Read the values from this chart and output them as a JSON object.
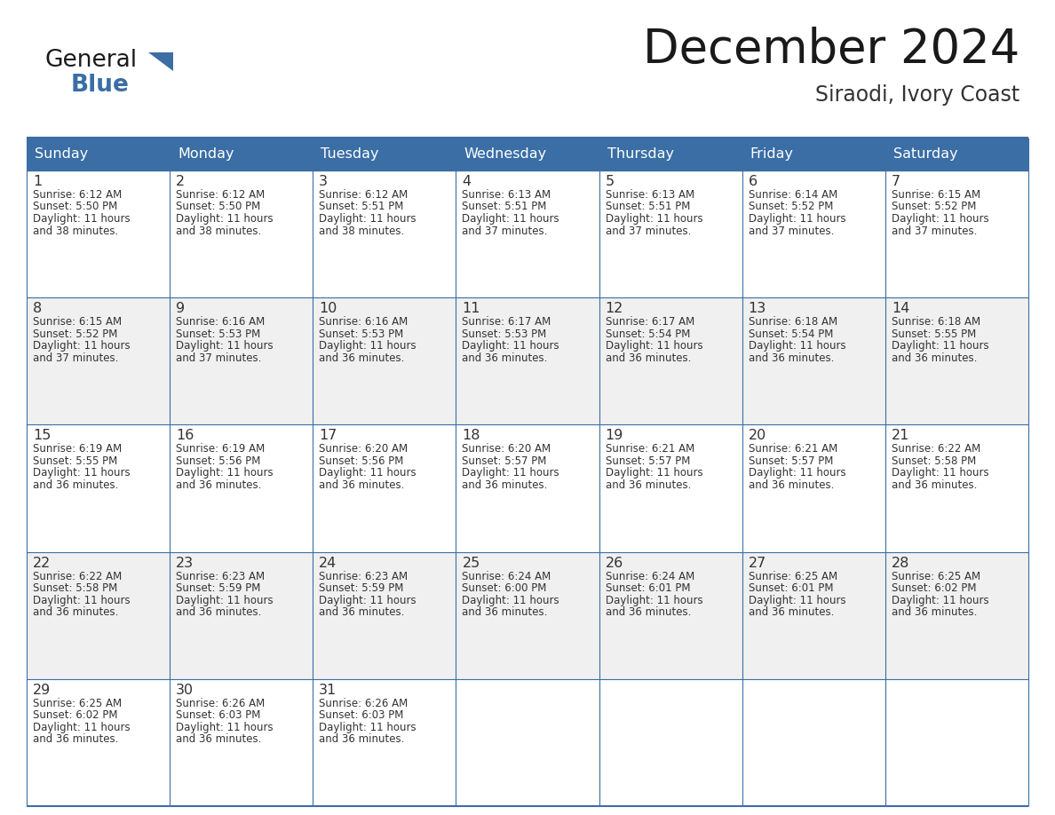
{
  "title": "December 2024",
  "subtitle": "Siraodi, Ivory Coast",
  "header_bg_color": "#3a6ea5",
  "header_text_color": "#FFFFFF",
  "grid_color": "#3a6ea5",
  "title_color": "#1a1a1a",
  "subtitle_color": "#333333",
  "text_color": "#333333",
  "days_of_week": [
    "Sunday",
    "Monday",
    "Tuesday",
    "Wednesday",
    "Thursday",
    "Friday",
    "Saturday"
  ],
  "logo_general_color": "#1a1a1a",
  "logo_blue_color": "#3a6ea5",
  "weeks": [
    [
      {
        "day": 1,
        "sunrise": "6:12 AM",
        "sunset": "5:50 PM",
        "daylight_h": "11 hours",
        "daylight_m": "38 minutes."
      },
      {
        "day": 2,
        "sunrise": "6:12 AM",
        "sunset": "5:50 PM",
        "daylight_h": "11 hours",
        "daylight_m": "38 minutes."
      },
      {
        "day": 3,
        "sunrise": "6:12 AM",
        "sunset": "5:51 PM",
        "daylight_h": "11 hours",
        "daylight_m": "38 minutes."
      },
      {
        "day": 4,
        "sunrise": "6:13 AM",
        "sunset": "5:51 PM",
        "daylight_h": "11 hours",
        "daylight_m": "37 minutes."
      },
      {
        "day": 5,
        "sunrise": "6:13 AM",
        "sunset": "5:51 PM",
        "daylight_h": "11 hours",
        "daylight_m": "37 minutes."
      },
      {
        "day": 6,
        "sunrise": "6:14 AM",
        "sunset": "5:52 PM",
        "daylight_h": "11 hours",
        "daylight_m": "37 minutes."
      },
      {
        "day": 7,
        "sunrise": "6:15 AM",
        "sunset": "5:52 PM",
        "daylight_h": "11 hours",
        "daylight_m": "37 minutes."
      }
    ],
    [
      {
        "day": 8,
        "sunrise": "6:15 AM",
        "sunset": "5:52 PM",
        "daylight_h": "11 hours",
        "daylight_m": "37 minutes."
      },
      {
        "day": 9,
        "sunrise": "6:16 AM",
        "sunset": "5:53 PM",
        "daylight_h": "11 hours",
        "daylight_m": "37 minutes."
      },
      {
        "day": 10,
        "sunrise": "6:16 AM",
        "sunset": "5:53 PM",
        "daylight_h": "11 hours",
        "daylight_m": "36 minutes."
      },
      {
        "day": 11,
        "sunrise": "6:17 AM",
        "sunset": "5:53 PM",
        "daylight_h": "11 hours",
        "daylight_m": "36 minutes."
      },
      {
        "day": 12,
        "sunrise": "6:17 AM",
        "sunset": "5:54 PM",
        "daylight_h": "11 hours",
        "daylight_m": "36 minutes."
      },
      {
        "day": 13,
        "sunrise": "6:18 AM",
        "sunset": "5:54 PM",
        "daylight_h": "11 hours",
        "daylight_m": "36 minutes."
      },
      {
        "day": 14,
        "sunrise": "6:18 AM",
        "sunset": "5:55 PM",
        "daylight_h": "11 hours",
        "daylight_m": "36 minutes."
      }
    ],
    [
      {
        "day": 15,
        "sunrise": "6:19 AM",
        "sunset": "5:55 PM",
        "daylight_h": "11 hours",
        "daylight_m": "36 minutes."
      },
      {
        "day": 16,
        "sunrise": "6:19 AM",
        "sunset": "5:56 PM",
        "daylight_h": "11 hours",
        "daylight_m": "36 minutes."
      },
      {
        "day": 17,
        "sunrise": "6:20 AM",
        "sunset": "5:56 PM",
        "daylight_h": "11 hours",
        "daylight_m": "36 minutes."
      },
      {
        "day": 18,
        "sunrise": "6:20 AM",
        "sunset": "5:57 PM",
        "daylight_h": "11 hours",
        "daylight_m": "36 minutes."
      },
      {
        "day": 19,
        "sunrise": "6:21 AM",
        "sunset": "5:57 PM",
        "daylight_h": "11 hours",
        "daylight_m": "36 minutes."
      },
      {
        "day": 20,
        "sunrise": "6:21 AM",
        "sunset": "5:57 PM",
        "daylight_h": "11 hours",
        "daylight_m": "36 minutes."
      },
      {
        "day": 21,
        "sunrise": "6:22 AM",
        "sunset": "5:58 PM",
        "daylight_h": "11 hours",
        "daylight_m": "36 minutes."
      }
    ],
    [
      {
        "day": 22,
        "sunrise": "6:22 AM",
        "sunset": "5:58 PM",
        "daylight_h": "11 hours",
        "daylight_m": "36 minutes."
      },
      {
        "day": 23,
        "sunrise": "6:23 AM",
        "sunset": "5:59 PM",
        "daylight_h": "11 hours",
        "daylight_m": "36 minutes."
      },
      {
        "day": 24,
        "sunrise": "6:23 AM",
        "sunset": "5:59 PM",
        "daylight_h": "11 hours",
        "daylight_m": "36 minutes."
      },
      {
        "day": 25,
        "sunrise": "6:24 AM",
        "sunset": "6:00 PM",
        "daylight_h": "11 hours",
        "daylight_m": "36 minutes."
      },
      {
        "day": 26,
        "sunrise": "6:24 AM",
        "sunset": "6:01 PM",
        "daylight_h": "11 hours",
        "daylight_m": "36 minutes."
      },
      {
        "day": 27,
        "sunrise": "6:25 AM",
        "sunset": "6:01 PM",
        "daylight_h": "11 hours",
        "daylight_m": "36 minutes."
      },
      {
        "day": 28,
        "sunrise": "6:25 AM",
        "sunset": "6:02 PM",
        "daylight_h": "11 hours",
        "daylight_m": "36 minutes."
      }
    ],
    [
      {
        "day": 29,
        "sunrise": "6:25 AM",
        "sunset": "6:02 PM",
        "daylight_h": "11 hours",
        "daylight_m": "36 minutes."
      },
      {
        "day": 30,
        "sunrise": "6:26 AM",
        "sunset": "6:03 PM",
        "daylight_h": "11 hours",
        "daylight_m": "36 minutes."
      },
      {
        "day": 31,
        "sunrise": "6:26 AM",
        "sunset": "6:03 PM",
        "daylight_h": "11 hours",
        "daylight_m": "36 minutes."
      },
      null,
      null,
      null,
      null
    ]
  ]
}
